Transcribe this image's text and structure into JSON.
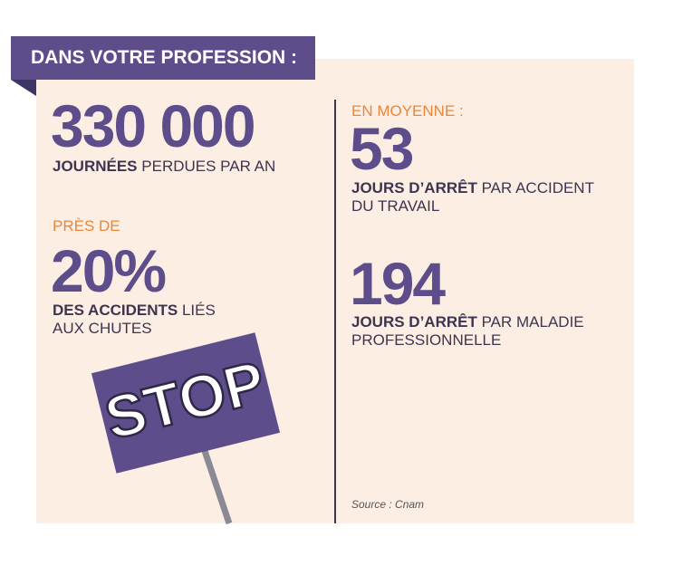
{
  "header": {
    "title": "DANS VOTRE PROFESSION :"
  },
  "stat_1": {
    "value": "330 000",
    "label_bold": "JOURNÉES",
    "label": "PERDUES PAR AN"
  },
  "stat_2": {
    "intro": "PRÈS DE",
    "value": "20%",
    "label_bold": "DES ACCIDENTS",
    "label": "LIÉS AUX CHUTES"
  },
  "stat_3": {
    "intro": "EN MOYENNE :",
    "value": "53",
    "label_bold": "JOURS D’ARRÊT",
    "label": "PAR ACCIDENT DU TRAVAIL"
  },
  "stat_4": {
    "value": "194",
    "label_bold": "JOURS D’ARRÊT",
    "label": "PAR MALADIE PROFESSIONNELLE"
  },
  "sign": {
    "text": "STOP"
  },
  "source": "Source : Cnam"
}
